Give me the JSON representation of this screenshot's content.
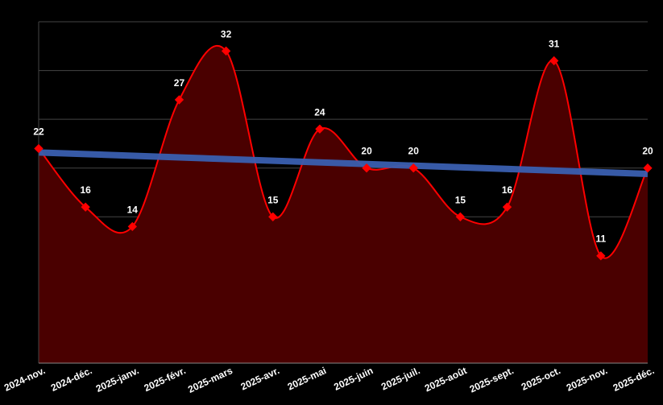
{
  "chart_data": {
    "type": "area",
    "categories": [
      "2024-nov.",
      "2024-déc.",
      "2025-janv.",
      "2025-févr.",
      "2025-mars",
      "2025-avr.",
      "2025-mai",
      "2025-juin",
      "2025-juil.",
      "2025-août",
      "2025-sept.",
      "2025-oct.",
      "2025-nov.",
      "2025-déc."
    ],
    "series": [
      {
        "values": [
          22,
          16,
          14,
          27,
          32,
          15,
          24,
          20,
          20,
          15,
          16,
          31,
          11,
          20
        ]
      }
    ],
    "trendline": {
      "start": 21.6,
      "end": 19.4
    },
    "ylim": [
      0,
      35
    ],
    "grid": true,
    "legend": "none",
    "colors": {
      "background": "#000000",
      "line": "#ff0000",
      "area": "#4a0000",
      "marker": "#ff0000",
      "trend": "#3a5fb0",
      "grid": "#444444",
      "text": "#ffffff"
    }
  }
}
